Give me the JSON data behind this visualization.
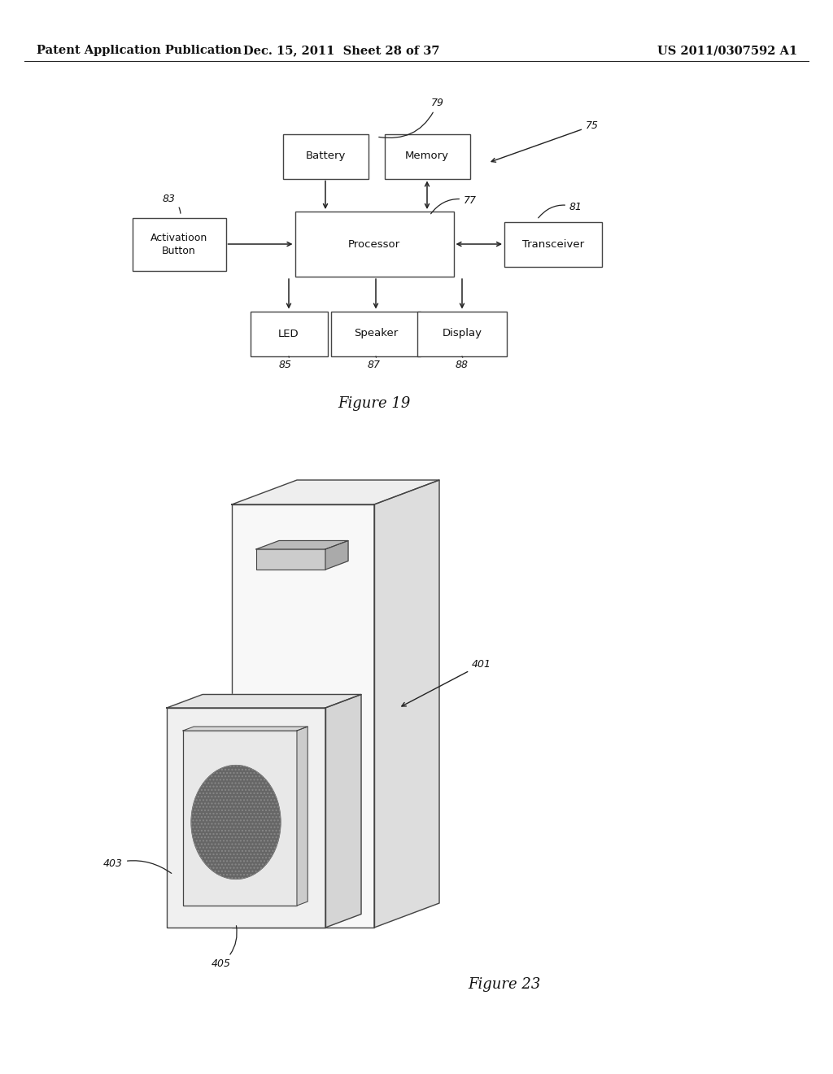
{
  "header_left": "Patent Application Publication",
  "header_mid": "Dec. 15, 2011  Sheet 28 of 37",
  "header_right": "US 2011/0307592 A1",
  "fig19_title": "Figure 19",
  "fig23_title": "Figure 23",
  "fig19_labels": {
    "battery": "Battery",
    "memory": "Memory",
    "processor": "Processor",
    "activation": "Activatioon\nButton",
    "transceiver": "Transceiver",
    "led": "LED",
    "speaker": "Speaker",
    "display": "Display"
  },
  "bg_color": "#ffffff",
  "line_color": "#222222",
  "text_color": "#111111",
  "box_edge_color": "#444444",
  "font_size_header": 10.5,
  "font_size_label": 9.5,
  "font_size_ref": 9,
  "font_size_fig_title": 13
}
